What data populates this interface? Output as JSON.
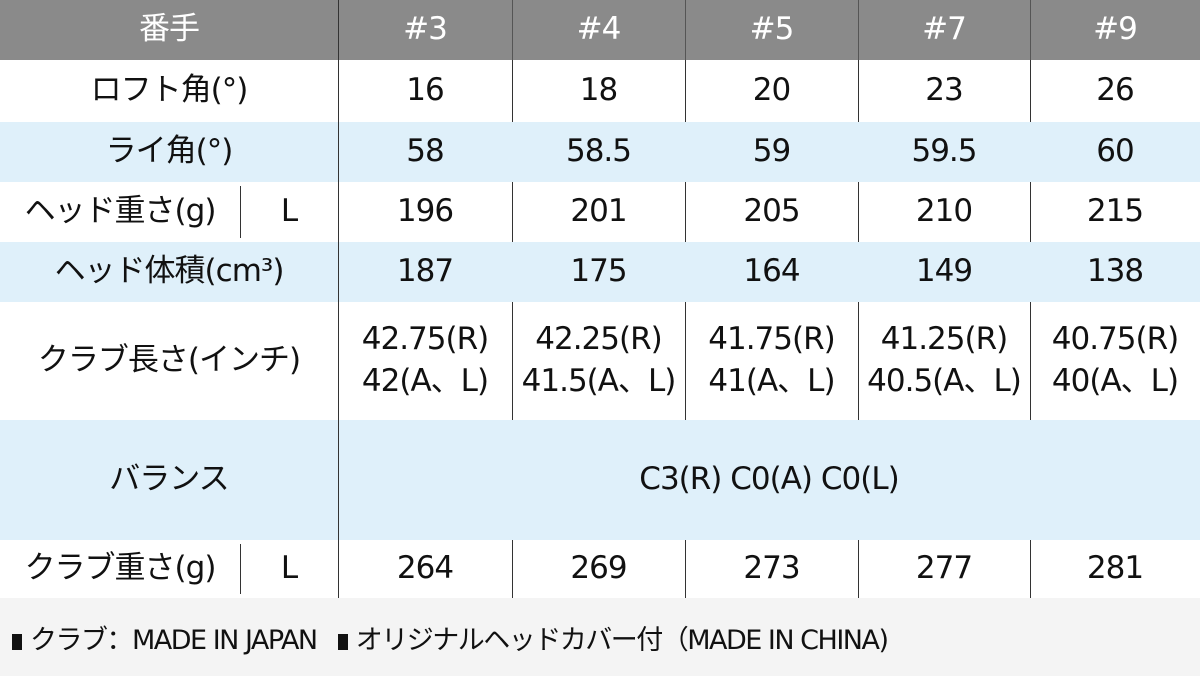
{
  "header": {
    "label": "番手",
    "columns": [
      "#3",
      "#4",
      "#5",
      "#7",
      "#9"
    ]
  },
  "rows": [
    {
      "label": "ロフト角(°)",
      "values": [
        "16",
        "18",
        "20",
        "23",
        "26"
      ]
    },
    {
      "label": "ライ角(°)",
      "values": [
        "58",
        "58.5",
        "59",
        "59.5",
        "60"
      ]
    },
    {
      "label": "ヘッド重さ(g)",
      "sub": "L",
      "values": [
        "196",
        "201",
        "205",
        "210",
        "215"
      ]
    },
    {
      "label": "ヘッド体積(cm³)",
      "values": [
        "187",
        "175",
        "164",
        "149",
        "138"
      ]
    },
    {
      "label": "クラブ長さ(インチ)",
      "values": [
        "42.75(R)\n42(A、L)",
        "42.25(R)\n41.5(A、L)",
        "41.75(R)\n41(A、L)",
        "41.25(R)\n40.5(A、L)",
        "40.75(R)\n40(A、L)"
      ]
    },
    {
      "label": "バランス",
      "merged": "C3(R)  C0(A)  C0(L)"
    },
    {
      "label": "クラブ重さ(g)",
      "sub": "L",
      "values": [
        "264",
        "269",
        "273",
        "277",
        "281"
      ]
    }
  ],
  "footer": {
    "note1": "クラブ：MADE IN JAPAN",
    "note2": "オリジナルヘッドカバー付（MADE IN CHINA)"
  },
  "colors": {
    "header_bg": "#8a8a8a",
    "stripe_bg": "#dff0fa"
  }
}
